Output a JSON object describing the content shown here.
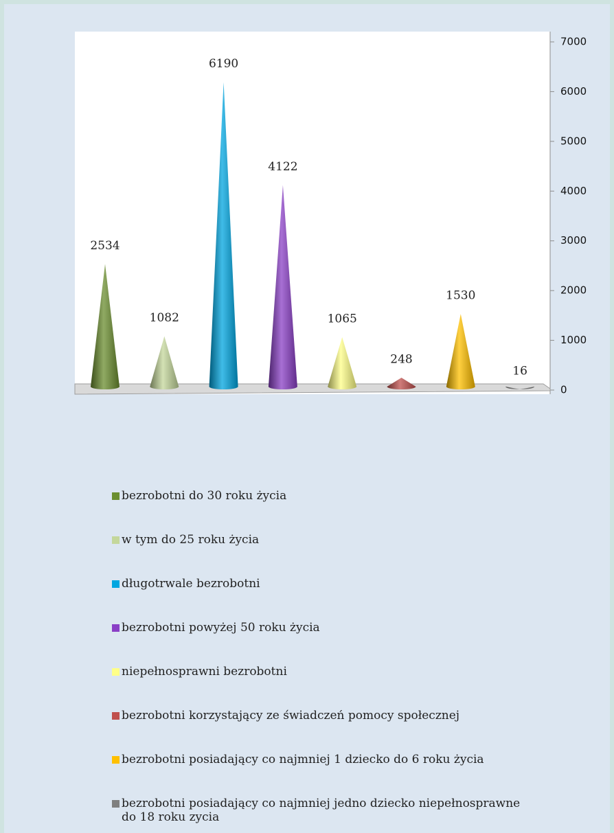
{
  "chart_data": {
    "type": "cone",
    "categories": [
      null
    ],
    "series": [
      {
        "name": "bezrobotni do 30 roku życia",
        "color": "#6b8e2f",
        "values": [
          2534
        ]
      },
      {
        "name": "w tym do 25 roku życia",
        "color": "#c4d79b",
        "values": [
          1082
        ]
      },
      {
        "name": "długotrwale bezrobotni",
        "color": "#00a6e0",
        "values": [
          6190
        ]
      },
      {
        "name": "bezrobotni powyżej 50 roku życia",
        "color": "#8a3fc6",
        "values": [
          4122
        ]
      },
      {
        "name": "niepełnosprawni bezrobotni",
        "color": "#ffff88",
        "values": [
          1065
        ]
      },
      {
        "name": "bezrobotni korzystający ze świadczeń pomocy społecznej",
        "color": "#c0504d",
        "values": [
          248
        ]
      },
      {
        "name": "bezrobotni posiadający co najmniej 1 dziecko do 6 roku życia",
        "color": "#ffc000",
        "values": [
          1530
        ]
      },
      {
        "name": "bezrobotni posiadający co najmniej jedno dziecko niepełnosprawne do 18 roku zycia",
        "color": "#7f7f7f",
        "values": [
          16
        ]
      }
    ],
    "ylim": [
      0,
      7000
    ],
    "yticks": [
      0,
      1000,
      2000,
      3000,
      4000,
      5000,
      6000,
      7000
    ],
    "legend": "bottom"
  }
}
